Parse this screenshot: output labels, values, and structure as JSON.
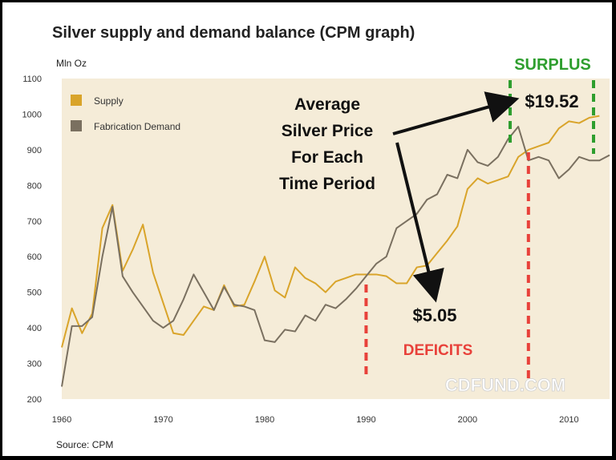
{
  "title": "Silver supply and demand balance (CPM graph)",
  "unit_label": "Mln Oz",
  "source": "Source: CPM",
  "watermark": "CDFUND.COM",
  "annotations": {
    "avg_price_lines": [
      "Average",
      "Silver Price",
      "For Each",
      "Time Period"
    ],
    "surplus": "SURPLUS",
    "deficits": "DEFICITS",
    "price_deficit": "$5.05",
    "price_surplus": "$19.52"
  },
  "colors": {
    "supply": "#d9a42a",
    "demand": "#7a7060",
    "plot_bg": "#f5ecd8",
    "surplus": "#2e9e2e",
    "deficits": "#e8413a",
    "arrow": "#111111"
  },
  "chart_data": {
    "type": "line",
    "xlim": [
      1960,
      2014
    ],
    "ylim": [
      200,
      1100
    ],
    "x_ticks": [
      1960,
      1970,
      1980,
      1990,
      2000,
      2010
    ],
    "y_ticks": [
      200,
      300,
      400,
      500,
      600,
      700,
      800,
      900,
      1000,
      1100
    ],
    "legend_position": "top-left",
    "grid": false,
    "marker_years": [
      1990,
      2006
    ],
    "series": [
      {
        "name": "Supply",
        "x": [
          1960,
          1961,
          1962,
          1963,
          1964,
          1965,
          1966,
          1967,
          1968,
          1969,
          1970,
          1971,
          1972,
          1973,
          1974,
          1975,
          1976,
          1977,
          1978,
          1979,
          1980,
          1981,
          1982,
          1983,
          1984,
          1985,
          1986,
          1987,
          1988,
          1989,
          1990,
          1991,
          1992,
          1993,
          1994,
          1995,
          1996,
          1997,
          1998,
          1999,
          2000,
          2001,
          2002,
          2003,
          2004,
          2005,
          2006,
          2007,
          2008,
          2009,
          2010,
          2011,
          2012,
          2013
        ],
        "y": [
          345,
          455,
          385,
          440,
          680,
          745,
          560,
          620,
          690,
          555,
          470,
          385,
          380,
          420,
          460,
          450,
          520,
          460,
          465,
          530,
          600,
          505,
          485,
          570,
          540,
          525,
          500,
          530,
          540,
          550,
          550,
          550,
          545,
          525,
          525,
          570,
          575,
          610,
          645,
          685,
          790,
          820,
          805,
          815,
          825,
          880,
          900,
          910,
          920,
          960,
          980,
          975,
          990,
          995
        ]
      },
      {
        "name": "Fabrication Demand",
        "x": [
          1960,
          1961,
          1962,
          1963,
          1964,
          1965,
          1966,
          1967,
          1968,
          1969,
          1970,
          1971,
          1972,
          1973,
          1974,
          1975,
          1976,
          1977,
          1978,
          1979,
          1980,
          1981,
          1982,
          1983,
          1984,
          1985,
          1986,
          1987,
          1988,
          1989,
          1990,
          1991,
          1992,
          1993,
          1994,
          1995,
          1996,
          1997,
          1998,
          1999,
          2000,
          2001,
          2002,
          2003,
          2004,
          2005,
          2006,
          2007,
          2008,
          2009,
          2010,
          2011,
          2012,
          2013,
          2014
        ],
        "y": [
          235,
          405,
          405,
          430,
          600,
          740,
          545,
          500,
          460,
          420,
          400,
          420,
          480,
          550,
          500,
          450,
          515,
          465,
          460,
          450,
          365,
          360,
          395,
          390,
          435,
          420,
          465,
          455,
          480,
          510,
          545,
          580,
          600,
          680,
          700,
          720,
          760,
          775,
          830,
          820,
          900,
          865,
          855,
          880,
          930,
          965,
          870,
          880,
          870,
          820,
          845,
          880,
          870,
          870,
          885
        ]
      }
    ]
  }
}
